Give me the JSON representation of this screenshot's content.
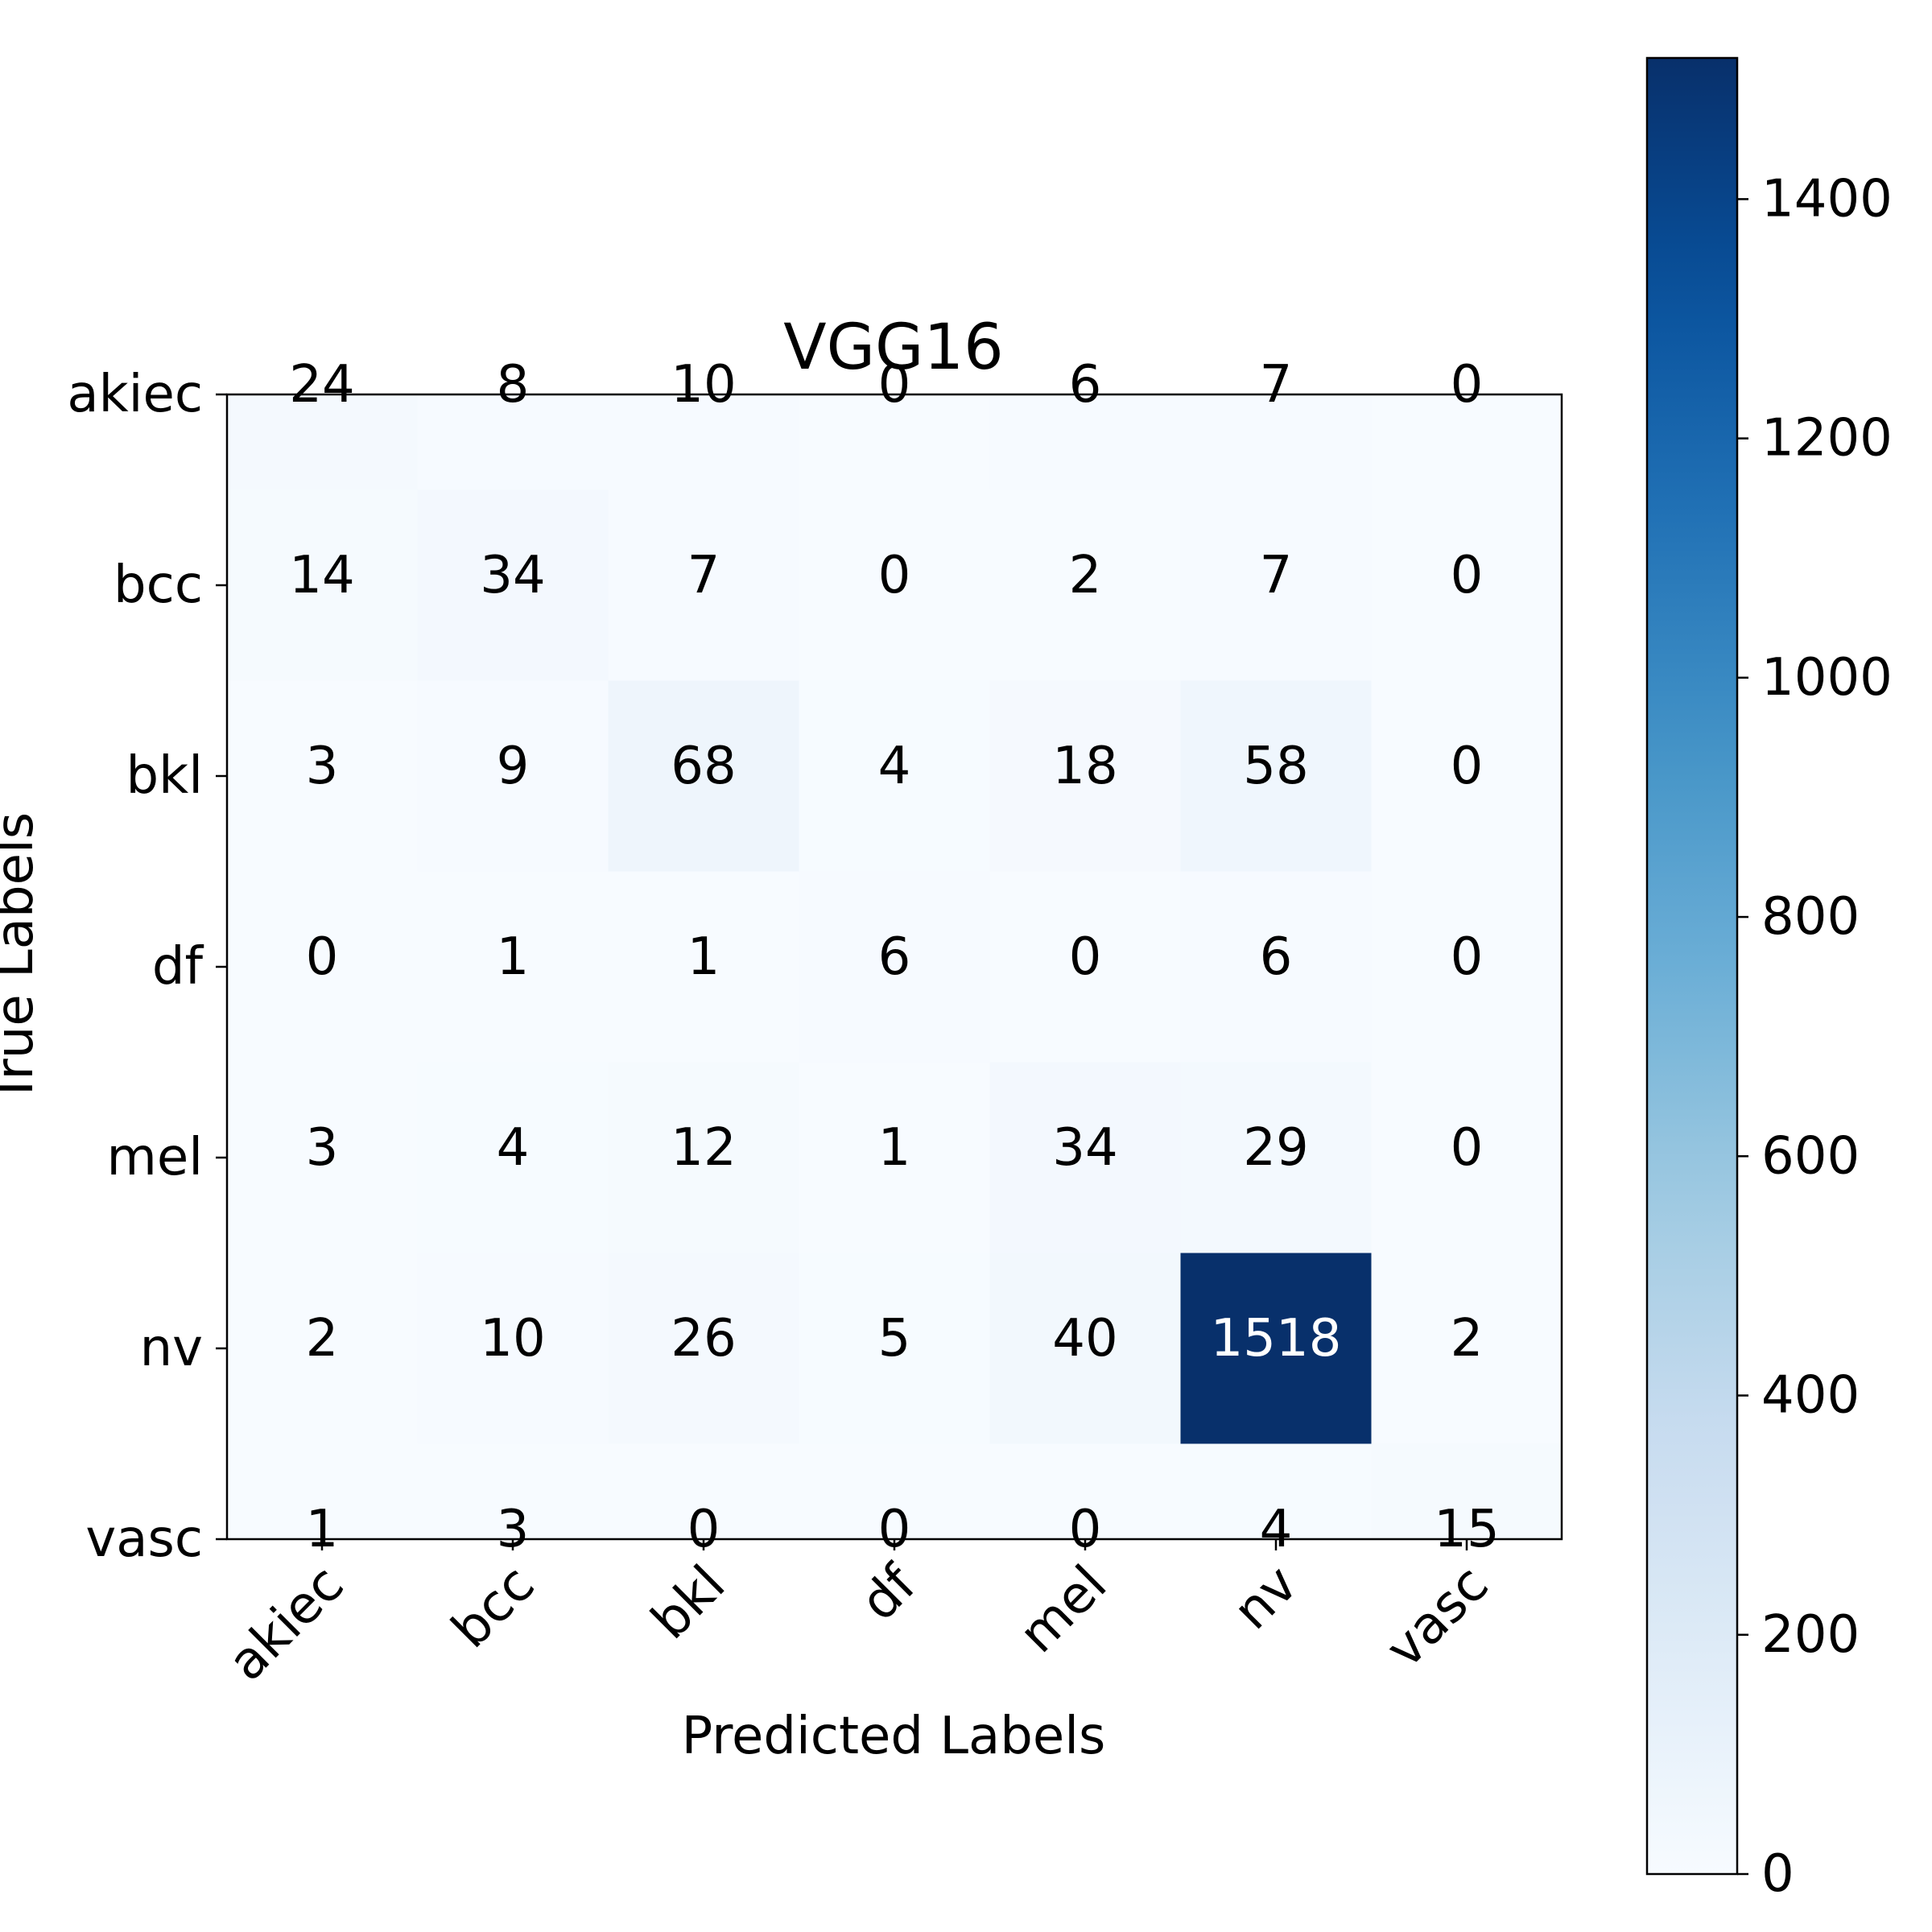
{
  "chart_data": {
    "type": "heatmap",
    "title": "VGG16",
    "xlabel": "Predicted Labels",
    "ylabel": "True Labels",
    "x_categories": [
      "akiec",
      "bcc",
      "bkl",
      "df",
      "mel",
      "nv",
      "vasc"
    ],
    "y_categories": [
      "akiec",
      "bcc",
      "bkl",
      "df",
      "mel",
      "nv",
      "vasc"
    ],
    "values": [
      [
        24,
        8,
        10,
        0,
        6,
        7,
        0
      ],
      [
        14,
        34,
        7,
        0,
        2,
        7,
        0
      ],
      [
        3,
        9,
        68,
        4,
        18,
        58,
        0
      ],
      [
        0,
        1,
        1,
        6,
        0,
        6,
        0
      ],
      [
        3,
        4,
        12,
        1,
        34,
        29,
        0
      ],
      [
        2,
        10,
        26,
        5,
        40,
        1518,
        2
      ],
      [
        1,
        3,
        0,
        0,
        0,
        4,
        15
      ]
    ],
    "colormap": "Blues",
    "colorbar": {
      "min": 0,
      "max": 1518,
      "ticks": [
        0,
        200,
        400,
        600,
        800,
        1000,
        1200,
        1400
      ]
    },
    "text_color_dark": "#000000",
    "text_color_light": "#ffffff",
    "grid": false
  }
}
